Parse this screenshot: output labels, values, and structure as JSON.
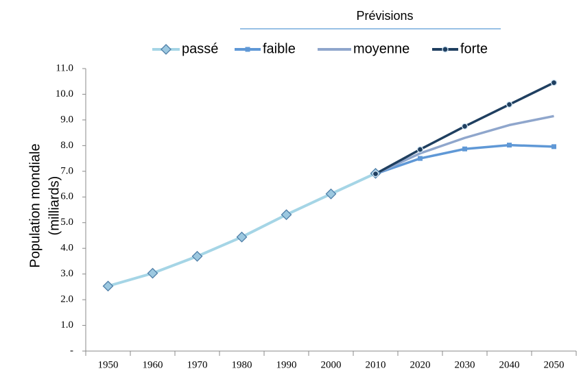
{
  "chart_data": {
    "type": "line",
    "annotation": "Prévisions",
    "ylabel_lines": [
      "Population mondiale",
      "(milliards)"
    ],
    "categories": [
      "1950",
      "1960",
      "1970",
      "1980",
      "1990",
      "2000",
      "2010",
      "2020",
      "2030",
      "2040",
      "2050"
    ],
    "series": [
      {
        "name": "passé",
        "color": "#a5d5e6",
        "marker": "diamond",
        "values": [
          2.53,
          3.03,
          3.69,
          4.44,
          5.31,
          6.12,
          6.92,
          null,
          null,
          null,
          null
        ]
      },
      {
        "name": "faible",
        "color": "#5f98d6",
        "marker": "square",
        "values": [
          null,
          null,
          null,
          null,
          null,
          null,
          6.9,
          7.5,
          7.87,
          8.02,
          7.96
        ]
      },
      {
        "name": "moyenne",
        "color": "#8fa6cc",
        "marker": "none",
        "values": [
          null,
          null,
          null,
          null,
          null,
          null,
          6.9,
          7.7,
          8.3,
          8.8,
          9.15
        ]
      },
      {
        "name": "forte",
        "color": "#1f3f60",
        "marker": "circle",
        "values": [
          null,
          null,
          null,
          null,
          null,
          null,
          6.9,
          7.85,
          8.75,
          9.6,
          10.45
        ]
      }
    ],
    "ylim": [
      0,
      11
    ],
    "yticks": [
      {
        "value": 0,
        "label": "-"
      },
      {
        "value": 1,
        "label": "1.0"
      },
      {
        "value": 2,
        "label": "2.0"
      },
      {
        "value": 3,
        "label": "3.0"
      },
      {
        "value": 4,
        "label": "4.0"
      },
      {
        "value": 5,
        "label": "5.0"
      },
      {
        "value": 6,
        "label": "6.0"
      },
      {
        "value": 7,
        "label": "7.0"
      },
      {
        "value": 8,
        "label": "8.0"
      },
      {
        "value": 9,
        "label": "9.0"
      },
      {
        "value": 10,
        "label": "10.0"
      },
      {
        "value": 11,
        "label": "11.0"
      }
    ],
    "grid": false
  }
}
